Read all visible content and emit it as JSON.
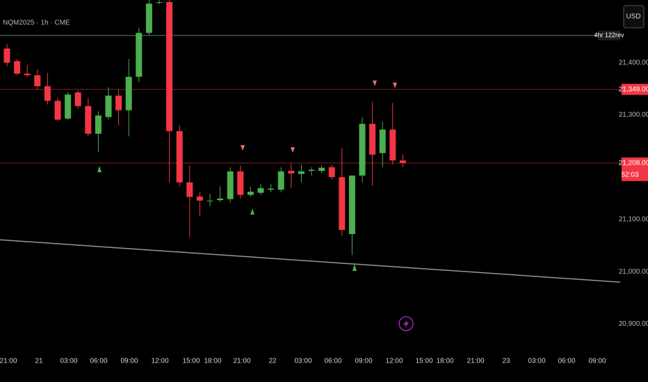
{
  "chart_data": {
    "type": "candlestick",
    "title": "NQM2025 · 1h · CME",
    "currency": "USD",
    "up_color": "#4caf50",
    "down_color": "#f23645",
    "candles": {
      "open": [
        21427,
        21403,
        21379,
        21376,
        21355,
        21327,
        21293,
        21343,
        21317,
        21264,
        21296,
        21337,
        21309,
        21373,
        21457,
        21515,
        21516,
        21269,
        21171,
        21144,
        21136,
        21137,
        21139,
        21192,
        21147,
        21151,
        21157,
        21157,
        21193,
        21187,
        21193,
        21193,
        21200,
        21181,
        21072,
        21184,
        21283,
        21227,
        21272,
        21213
      ],
      "high": [
        21436,
        21407,
        21396,
        21387,
        21380,
        21333,
        21344,
        21347,
        21333,
        21307,
        21353,
        21349,
        21407,
        21467,
        21520,
        21520,
        21520,
        21280,
        21203,
        21153,
        21149,
        21163,
        21200,
        21203,
        21163,
        21167,
        21168,
        21200,
        21207,
        21205,
        21200,
        21203,
        21205,
        21237,
        21184,
        21296,
        21325,
        21287,
        21323,
        21224
      ],
      "low": [
        21393,
        21376,
        21373,
        21349,
        21320,
        21288,
        21291,
        21312,
        21260,
        21229,
        21291,
        21280,
        21259,
        21363,
        21453,
        21512,
        21171,
        21163,
        21067,
        21107,
        21125,
        21133,
        21133,
        21140,
        21144,
        21147,
        21152,
        21152,
        21160,
        21171,
        21184,
        21189,
        21176,
        21069,
        21032,
        21171,
        21165,
        21200,
        21205,
        21200
      ],
      "close": [
        21400,
        21379,
        21376,
        21355,
        21327,
        21291,
        21339,
        21317,
        21264,
        21299,
        21337,
        21309,
        21373,
        21457,
        21513,
        21516,
        21269,
        21171,
        21143,
        21136,
        21136,
        21140,
        21192,
        21147,
        21153,
        21160,
        21159,
        21192,
        21188,
        21192,
        21195,
        21199,
        21181,
        21080,
        21184,
        21283,
        21224,
        21272,
        21213,
        21208
      ]
    },
    "ylim": [
      20862,
      21520
    ],
    "yticks": [
      {
        "value": 21400,
        "label": "21,400.00"
      },
      {
        "value": 21300,
        "label": "21,300.00"
      },
      {
        "value": 21100,
        "label": "21,100.00"
      },
      {
        "value": 21000,
        "label": "21,000.00"
      },
      {
        "value": 20900,
        "label": "20,900.00"
      }
    ],
    "xtick_labels": [
      "21:00",
      "21",
      "03:00",
      "06:00",
      "09:00",
      "12:00",
      "15:00",
      "18:00",
      "21:00",
      "22",
      "03:00",
      "06:00",
      "09:00",
      "12:00",
      "15:00",
      "18:00",
      "21:00",
      "23",
      "03:00",
      "06:00",
      "09:00"
    ],
    "price_lines": [
      {
        "value": 21452,
        "label": "4hr 122rev",
        "color": "#787b86"
      },
      {
        "value": 21349,
        "label": "21,349.00",
        "color": "#f23645"
      },
      {
        "value": 21208,
        "label": "21,208.00",
        "color": "#f23645",
        "countdown": "52:03"
      }
    ],
    "trendline": {
      "values": [
        21061,
        20980
      ],
      "color": "#9598a1"
    }
  }
}
